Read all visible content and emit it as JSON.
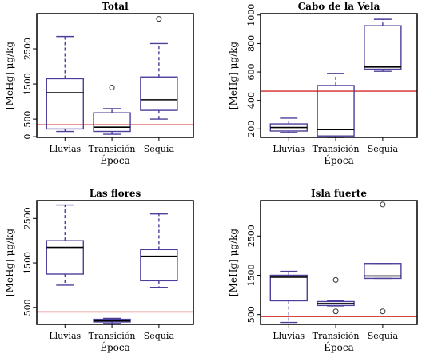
{
  "chart_data": [
    {
      "type": "boxplot",
      "title": "Total",
      "xlabel": "Época",
      "ylabel": "[MeHg] μg/kg",
      "categories": [
        "Lluvias",
        "Transición",
        "Sequía"
      ],
      "yticks": [
        0,
        500,
        1500,
        2500
      ],
      "ylim": [
        -20,
        3500
      ],
      "reference_line": 340,
      "boxes": [
        {
          "whisker_low": 150,
          "q1": 220,
          "median": 1250,
          "q3": 1650,
          "whisker_high": 2850,
          "outliers": []
        },
        {
          "whisker_low": 70,
          "q1": 150,
          "median": 270,
          "q3": 680,
          "whisker_high": 800,
          "outliers": [
            1400
          ]
        },
        {
          "whisker_low": 500,
          "q1": 750,
          "median": 1050,
          "q3": 1700,
          "whisker_high": 2650,
          "outliers": [
            3350
          ]
        }
      ]
    },
    {
      "type": "boxplot",
      "title": "Cabo de la Vela",
      "xlabel": "Época",
      "ylabel": "[MeHg] μg/kg",
      "categories": [
        "Lluvias",
        "Transición",
        "Sequía"
      ],
      "yticks": [
        200,
        400,
        600,
        800,
        1000
      ],
      "ylim": [
        140,
        1010
      ],
      "reference_line": 465,
      "boxes": [
        {
          "whisker_low": 175,
          "q1": 185,
          "median": 210,
          "q3": 235,
          "whisker_high": 275,
          "outliers": []
        },
        {
          "whisker_low": 140,
          "q1": 150,
          "median": 195,
          "q3": 505,
          "whisker_high": 590,
          "outliers": []
        },
        {
          "whisker_low": 605,
          "q1": 620,
          "median": 635,
          "q3": 925,
          "whisker_high": 970,
          "outliers": []
        }
      ]
    },
    {
      "type": "boxplot",
      "title": "Las flores",
      "xlabel": "Época",
      "ylabel": "[MeHg] μg/kg",
      "categories": [
        "Lluvias",
        "Transición",
        "Sequía"
      ],
      "yticks": [
        500,
        1500,
        2500
      ],
      "ylim": [
        120,
        2900
      ],
      "reference_line": 400,
      "boxes": [
        {
          "whisker_low": 1000,
          "q1": 1250,
          "median": 1850,
          "q3": 2000,
          "whisker_high": 2800,
          "outliers": []
        },
        {
          "whisker_low": 140,
          "q1": 175,
          "median": 200,
          "q3": 235,
          "whisker_high": 255,
          "outliers": []
        },
        {
          "whisker_low": 950,
          "q1": 1100,
          "median": 1650,
          "q3": 1800,
          "whisker_high": 2600,
          "outliers": []
        }
      ]
    },
    {
      "type": "boxplot",
      "title": "Isla fuerte",
      "xlabel": "Época",
      "ylabel": "[MeHg] μg/kg",
      "categories": [
        "Lluvias",
        "Transición",
        "Sequía"
      ],
      "yticks": [
        500,
        1500,
        2500
      ],
      "ylim": [
        250,
        3400
      ],
      "reference_line": 450,
      "boxes": [
        {
          "whisker_low": 300,
          "q1": 850,
          "median": 1450,
          "q3": 1500,
          "whisker_high": 1600,
          "outliers": []
        },
        {
          "whisker_low": 720,
          "q1": 730,
          "median": 780,
          "q3": 830,
          "whisker_high": 850,
          "outliers": [
            580,
            1380
          ]
        },
        {
          "whisker_low": 1420,
          "q1": 1420,
          "median": 1480,
          "q3": 1800,
          "whisker_high": 1800,
          "outliers": [
            580,
            3300
          ]
        }
      ]
    }
  ]
}
